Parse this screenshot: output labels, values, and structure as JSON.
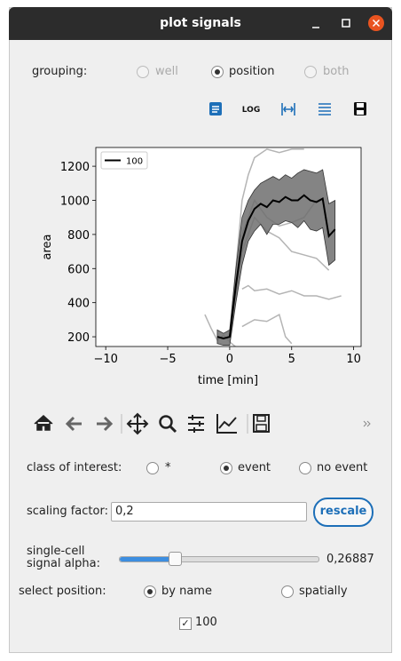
{
  "window": {
    "title": "plot signals"
  },
  "grouping": {
    "label": "grouping:",
    "options": [
      "well",
      "position",
      "both"
    ]
  },
  "toolbar": {
    "log": "LOG"
  },
  "chart_data": {
    "type": "line",
    "xlabel": "time [min]",
    "ylabel": "area",
    "xlim": [
      -10.8,
      10.6
    ],
    "ylim": [
      143,
      1310
    ],
    "xticks": [
      {
        "value": -10,
        "label": "−10"
      },
      {
        "value": -5,
        "label": "−5"
      },
      0,
      5,
      10
    ],
    "yticks": [
      200,
      400,
      600,
      800,
      1000,
      1200
    ],
    "x": [
      -1,
      -0.5,
      0,
      0.5,
      1,
      1.5,
      2,
      2.5,
      3,
      3.5,
      4,
      4.5,
      5,
      5.5,
      6,
      6.5,
      7,
      7.5,
      8,
      8.5
    ],
    "series": [
      {
        "name": "100",
        "color": "#000000",
        "values": [
          200,
          190,
          200,
          500,
          760,
          880,
          950,
          980,
          960,
          1000,
          990,
          1020,
          1000,
          1000,
          1030,
          1000,
          990,
          1010,
          790,
          830
        ]
      }
    ],
    "band": {
      "color": "#6e6e6e",
      "upper": [
        240,
        220,
        240,
        600,
        900,
        1000,
        1060,
        1100,
        1120,
        1140,
        1120,
        1150,
        1130,
        1160,
        1180,
        1170,
        1160,
        1180,
        980,
        1000
      ],
      "lower": [
        160,
        150,
        150,
        400,
        620,
        760,
        820,
        860,
        800,
        860,
        860,
        880,
        870,
        840,
        880,
        830,
        820,
        840,
        620,
        650
      ]
    },
    "trace_color": "#b4b4b4",
    "traces": [
      {
        "x": [
          0,
          0.5,
          1,
          1.5,
          2,
          3,
          4,
          5,
          6
        ],
        "values": [
          200,
          600,
          1000,
          1150,
          1250,
          1300,
          1280,
          1300,
          1300
        ]
      },
      {
        "x": [
          1,
          1.5,
          2,
          3,
          4,
          5,
          6,
          7,
          8,
          9
        ],
        "values": [
          480,
          500,
          470,
          480,
          450,
          470,
          440,
          440,
          420,
          440
        ]
      },
      {
        "x": [
          1,
          2,
          3,
          4,
          4.5,
          5
        ],
        "values": [
          260,
          300,
          290,
          330,
          200,
          160
        ]
      },
      {
        "x": [
          -2,
          -1.5,
          -1,
          -0.5,
          0,
          0.5
        ],
        "values": [
          330,
          250,
          180,
          210,
          170,
          140
        ]
      },
      {
        "x": [
          0,
          1,
          2,
          3,
          4,
          5,
          6,
          7,
          8
        ],
        "values": [
          200,
          700,
          900,
          820,
          780,
          700,
          680,
          660,
          590
        ]
      },
      {
        "x": [
          0,
          1,
          2,
          3,
          4,
          5,
          6,
          7
        ],
        "values": [
          180,
          800,
          1000,
          900,
          850,
          870,
          900,
          1000
        ]
      }
    ]
  },
  "class_of_interest": {
    "label": "class of interest:",
    "options": [
      "*",
      "event",
      "no event"
    ]
  },
  "scaling": {
    "label": "scaling factor:",
    "value": "0,2",
    "button": "rescale"
  },
  "alpha": {
    "label": "single-cell signal alpha:",
    "value": "0,26887"
  },
  "select_position": {
    "label": "select position:",
    "options": [
      "by name",
      "spatially"
    ]
  },
  "positions": [
    "100"
  ]
}
